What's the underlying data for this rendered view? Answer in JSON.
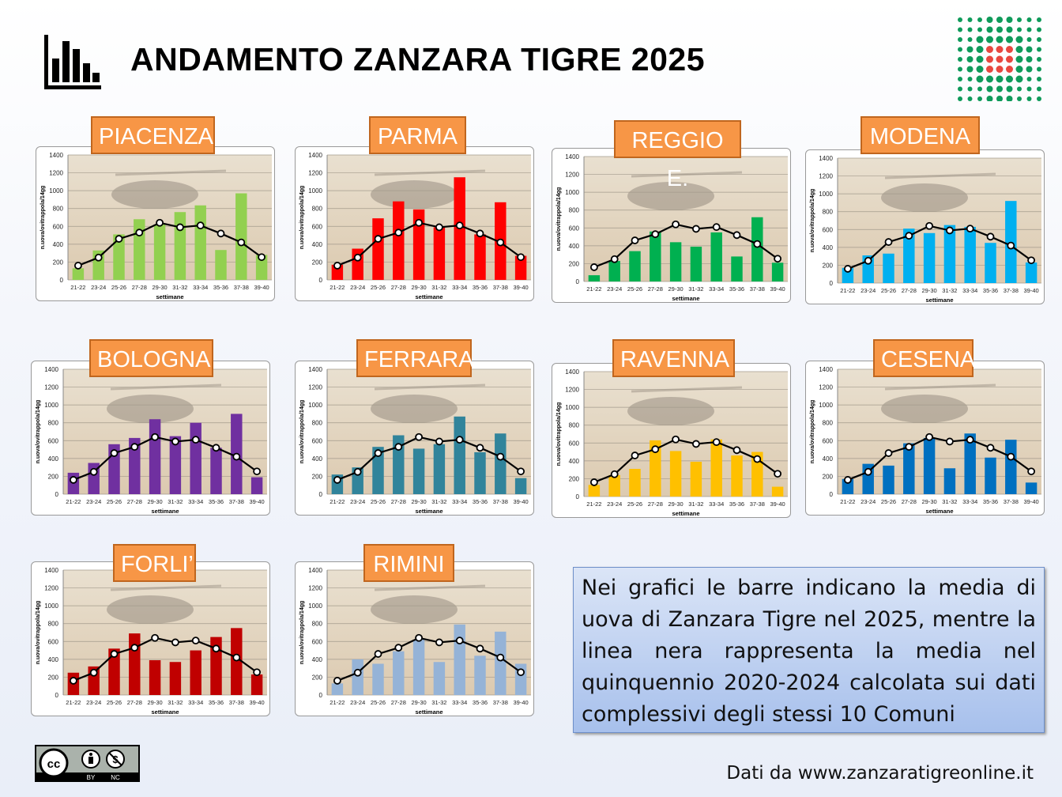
{
  "header": {
    "title": "ANDAMENTO ZANZARA TIGRE 2025"
  },
  "note": "Nei grafici le barre indicano la media di uova di Zanzara Tigre nel 2025, mentre la linea nera rappresenta la media nel quinquennio 2020-2024 calcolata sui dati complessivi degli stessi 10 Comuni",
  "source": "Dati da www.zanzaratigreonline.it",
  "license": {
    "by": "BY",
    "nc": "NC"
  },
  "chart_common": {
    "type": "bar+line",
    "xlabel": "settimane",
    "ylabel": "n.uova/ovitrappola/14gg",
    "ylim": [
      0,
      1400
    ],
    "yticks": [
      0,
      200,
      400,
      600,
      800,
      1000,
      1200,
      1400
    ],
    "categories": [
      "21-22",
      "23-24",
      "25-26",
      "27-28",
      "29-30",
      "31-32",
      "33-34",
      "35-36",
      "37-38",
      "39-40"
    ],
    "line_series": {
      "name": "media 2020-2024",
      "values": [
        160,
        250,
        460,
        530,
        640,
        590,
        610,
        520,
        420,
        255
      ]
    }
  },
  "chart_data": [
    {
      "title": "PIACENZA",
      "color": "#92d050",
      "values": [
        130,
        330,
        510,
        680,
        620,
        760,
        835,
        335,
        970,
        280
      ]
    },
    {
      "title": "PARMA",
      "color": "#ff0000",
      "values": [
        170,
        350,
        690,
        880,
        790,
        590,
        1150,
        510,
        870,
        270
      ]
    },
    {
      "title": "REGGIO E.",
      "color": "#00b050",
      "values": [
        70,
        230,
        340,
        560,
        440,
        390,
        550,
        280,
        720,
        210
      ]
    },
    {
      "title": "MODENA",
      "color": "#00b0f0",
      "values": [
        170,
        310,
        330,
        610,
        560,
        650,
        630,
        450,
        920,
        230
      ]
    },
    {
      "title": "BOLOGNA",
      "color": "#7030a0",
      "values": [
        240,
        350,
        560,
        630,
        840,
        650,
        800,
        520,
        900,
        190
      ]
    },
    {
      "title": "FERRARA",
      "color": "#31849b",
      "values": [
        220,
        300,
        530,
        660,
        510,
        560,
        870,
        470,
        680,
        180
      ]
    },
    {
      "title": "RAVENNA",
      "color": "#ffc000",
      "values": [
        130,
        240,
        310,
        630,
        510,
        390,
        640,
        460,
        500,
        110
      ]
    },
    {
      "title": "CESENA",
      "color": "#0070c0",
      "values": [
        170,
        340,
        320,
        570,
        630,
        290,
        680,
        410,
        610,
        130
      ]
    },
    {
      "title": "FORLI’",
      "color": "#c00000",
      "values": [
        250,
        320,
        520,
        690,
        390,
        370,
        500,
        650,
        750,
        230
      ]
    },
    {
      "title": "RIMINI",
      "color": "#95b3d7",
      "values": [
        130,
        400,
        350,
        490,
        620,
        370,
        790,
        440,
        710,
        350
      ]
    }
  ]
}
